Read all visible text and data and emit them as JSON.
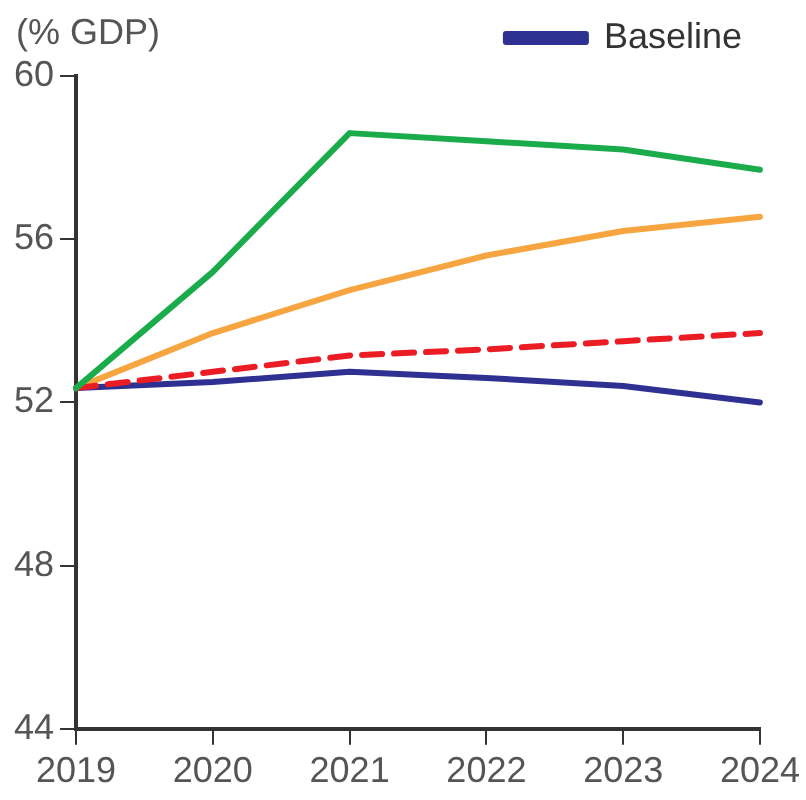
{
  "chart_data": {
    "type": "line",
    "ylabel": "(% GDP)",
    "categories": [
      "2019",
      "2020",
      "2021",
      "2022",
      "2023",
      "2024"
    ],
    "series": [
      {
        "name": "Baseline",
        "color": "#2e3192",
        "values": [
          52.35,
          52.5,
          52.75,
          52.6,
          52.4,
          52.0
        ]
      },
      {
        "color": "#f7a540",
        "values": [
          52.35,
          53.7,
          54.75,
          55.6,
          56.2,
          56.55
        ]
      },
      {
        "color": "#ec1c24",
        "line_style": "dashed",
        "values": [
          52.35,
          52.75,
          53.15,
          53.3,
          53.5,
          53.7
        ]
      },
      {
        "color": "#1aab4b",
        "values": [
          52.35,
          55.2,
          58.6,
          58.4,
          58.2,
          57.7
        ]
      }
    ],
    "ylim": [
      44,
      60
    ],
    "yticks": [
      44,
      48,
      52,
      56,
      60
    ],
    "grid": false,
    "legend": "top",
    "marker": "none"
  }
}
